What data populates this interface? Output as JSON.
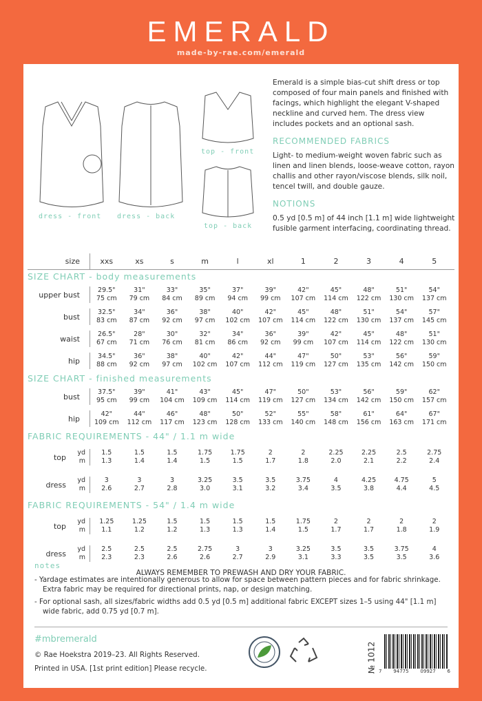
{
  "header": {
    "title": "EMERALD",
    "url": "made-by-rae.com/emerald"
  },
  "captions": {
    "dress_front": "dress - front",
    "dress_back": "dress - back",
    "top_front": "top - front",
    "top_back": "top - back"
  },
  "description": "Emerald is a simple bias-cut shift dress or top composed of four main panels and finished with facings, which highlight the elegant V-shaped neckline and curved hem. The dress view includes pockets and an optional sash.",
  "fabrics": {
    "heading": "RECOMMENDED FABRICS",
    "text": "Light- to medium-weight woven fabric such as linen and linen blends, loose-weave cotton, rayon challis and other rayon/viscose blends, silk noil, tencel twill, and double gauze."
  },
  "notions": {
    "heading": "NOTIONS",
    "text": "0.5 yd [0.5 m] of 44 inch [1.1 m] wide lightweight fusible garment interfacing, coordinating thread."
  },
  "size_label": "size",
  "sizes": [
    "xxs",
    "xs",
    "s",
    "m",
    "l",
    "xl",
    "1",
    "2",
    "3",
    "4",
    "5"
  ],
  "measure_sections": [
    {
      "title": "SIZE CHART - body measurements",
      "rows": [
        {
          "label": "upper bust",
          "in": [
            "29.5\"",
            "31\"",
            "33\"",
            "35\"",
            "37\"",
            "39\"",
            "42\"",
            "45\"",
            "48\"",
            "51\"",
            "54\""
          ],
          "cm": [
            "75 cm",
            "79 cm",
            "84 cm",
            "89 cm",
            "94 cm",
            "99 cm",
            "107 cm",
            "114 cm",
            "122 cm",
            "130 cm",
            "137 cm"
          ]
        },
        {
          "label": "bust",
          "in": [
            "32.5\"",
            "34\"",
            "36\"",
            "38\"",
            "40\"",
            "42\"",
            "45\"",
            "48\"",
            "51\"",
            "54\"",
            "57\""
          ],
          "cm": [
            "83 cm",
            "87 cm",
            "92 cm",
            "97 cm",
            "102 cm",
            "107 cm",
            "114 cm",
            "122 cm",
            "130 cm",
            "137 cm",
            "145 cm"
          ]
        },
        {
          "label": "waist",
          "in": [
            "26.5\"",
            "28\"",
            "30\"",
            "32\"",
            "34\"",
            "36\"",
            "39\"",
            "42\"",
            "45\"",
            "48\"",
            "51\""
          ],
          "cm": [
            "67 cm",
            "71 cm",
            "76 cm",
            "81 cm",
            "86 cm",
            "92 cm",
            "99 cm",
            "107 cm",
            "114 cm",
            "122 cm",
            "130 cm"
          ]
        },
        {
          "label": "hip",
          "in": [
            "34.5\"",
            "36\"",
            "38\"",
            "40\"",
            "42\"",
            "44\"",
            "47\"",
            "50\"",
            "53\"",
            "56\"",
            "59\""
          ],
          "cm": [
            "88 cm",
            "92 cm",
            "97 cm",
            "102 cm",
            "107 cm",
            "112 cm",
            "119 cm",
            "127 cm",
            "135 cm",
            "142 cm",
            "150 cm"
          ]
        }
      ]
    },
    {
      "title": "SIZE CHART - finished measurements",
      "rows": [
        {
          "label": "bust",
          "in": [
            "37.5\"",
            "39\"",
            "41\"",
            "43\"",
            "45\"",
            "47\"",
            "50\"",
            "53\"",
            "56\"",
            "59\"",
            "62\""
          ],
          "cm": [
            "95 cm",
            "99 cm",
            "104 cm",
            "109 cm",
            "114 cm",
            "119 cm",
            "127 cm",
            "134 cm",
            "142 cm",
            "150 cm",
            "157 cm"
          ]
        },
        {
          "label": "hip",
          "in": [
            "42\"",
            "44\"",
            "46\"",
            "48\"",
            "50\"",
            "52\"",
            "55\"",
            "58\"",
            "61\"",
            "64\"",
            "67\""
          ],
          "cm": [
            "109 cm",
            "112 cm",
            "117 cm",
            "123 cm",
            "128 cm",
            "133 cm",
            "140 cm",
            "148 cm",
            "156 cm",
            "163 cm",
            "171 cm"
          ]
        }
      ]
    }
  ],
  "fabric_sections": [
    {
      "title": "FABRIC REQUIREMENTS - 44\" / 1.1 m wide",
      "rows": [
        {
          "label": "top",
          "yd": [
            "1.5",
            "1.5",
            "1.5",
            "1.75",
            "1.75",
            "2",
            "2",
            "2.25",
            "2.25",
            "2.5",
            "2.75"
          ],
          "m": [
            "1.3",
            "1.4",
            "1.4",
            "1.5",
            "1.5",
            "1.7",
            "1.8",
            "2.0",
            "2.1",
            "2.2",
            "2.4"
          ]
        },
        {
          "label": "dress",
          "yd": [
            "3",
            "3",
            "3",
            "3.25",
            "3.5",
            "3.5",
            "3.75",
            "4",
            "4.25",
            "4.75",
            "5"
          ],
          "m": [
            "2.6",
            "2.7",
            "2.8",
            "3.0",
            "3.1",
            "3.2",
            "3.4",
            "3.5",
            "3.8",
            "4.4",
            "4.5"
          ]
        }
      ]
    },
    {
      "title": "FABRIC REQUIREMENTS - 54\" / 1.4 m wide",
      "rows": [
        {
          "label": "top",
          "yd": [
            "1.25",
            "1.25",
            "1.5",
            "1.5",
            "1.5",
            "1.5",
            "1.75",
            "2",
            "2",
            "2",
            "2"
          ],
          "m": [
            "1.1",
            "1.2",
            "1.2",
            "1.3",
            "1.3",
            "1.4",
            "1.5",
            "1.7",
            "1.7",
            "1.8",
            "1.9"
          ]
        },
        {
          "label": "dress",
          "yd": [
            "2.5",
            "2.5",
            "2.5",
            "2.75",
            "3",
            "3",
            "3.25",
            "3.5",
            "3.5",
            "3.75",
            "4"
          ],
          "m": [
            "2.3",
            "2.3",
            "2.6",
            "2.6",
            "2.7",
            "2.9",
            "3.1",
            "3.3",
            "3.5",
            "3.5",
            "3.6"
          ]
        }
      ]
    }
  ],
  "unit_labels": {
    "yd": "yd",
    "m": "m"
  },
  "prewash": "ALWAYS REMEMBER TO PREWASH AND DRY YOUR FABRIC.",
  "notes": {
    "heading": "notes",
    "items": [
      "- Yardage estimates are intentionally generous to allow for space between pattern pieces and for fabric shrinkage. Extra fabric may be required for directional prints, nap, or design matching.",
      "- For optional sash, all sizes/fabric widths add 0.5 yd [0.5 m] additional fabric EXCEPT sizes 1–5 using 44\" [1.1 m] wide fabric, add 0.75 yd [0.7 m]."
    ]
  },
  "footer": {
    "hashtag": "#mbremerald",
    "copyright": "© Rae Hoekstra 2019–23. All Rights Reserved.",
    "printed": "Printed in USA. [1st print edition] Please recycle.",
    "pattern_number": "№ 1012",
    "barcode_digits": [
      "7",
      "94775",
      "09927",
      "6"
    ]
  },
  "colors": {
    "background": "#f3693f",
    "accent": "#7fcdb5"
  },
  "icons": [
    "sustainable-paper-seal-icon",
    "recycle-icon",
    "barcode"
  ]
}
